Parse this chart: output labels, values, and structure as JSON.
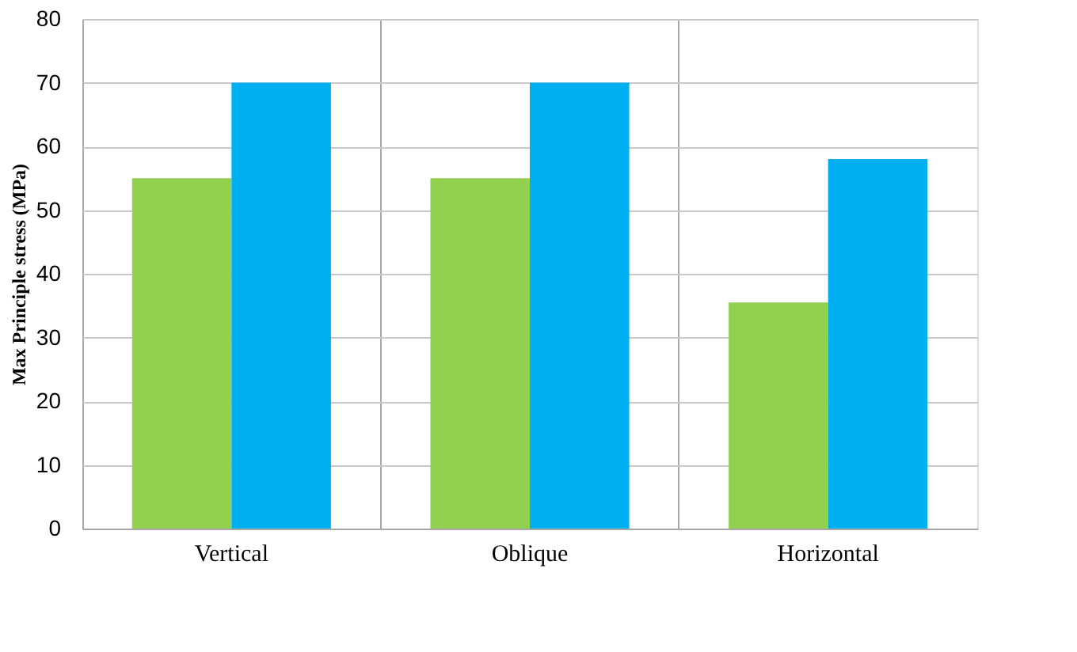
{
  "chart_data": {
    "type": "bar",
    "ylabel": "Max Principle stress (MPa)",
    "categories": [
      "Vertical",
      "Oblique",
      "Horizontal"
    ],
    "series": [
      {
        "color": "#92d050",
        "values": [
          55,
          55,
          35.5
        ]
      },
      {
        "color": "#00b0f0",
        "values": [
          70,
          70,
          58
        ]
      }
    ],
    "ylim": [
      0,
      80
    ],
    "yticks": [
      0,
      10,
      20,
      30,
      40,
      50,
      60,
      70,
      80
    ],
    "grid": true,
    "legend": false
  }
}
